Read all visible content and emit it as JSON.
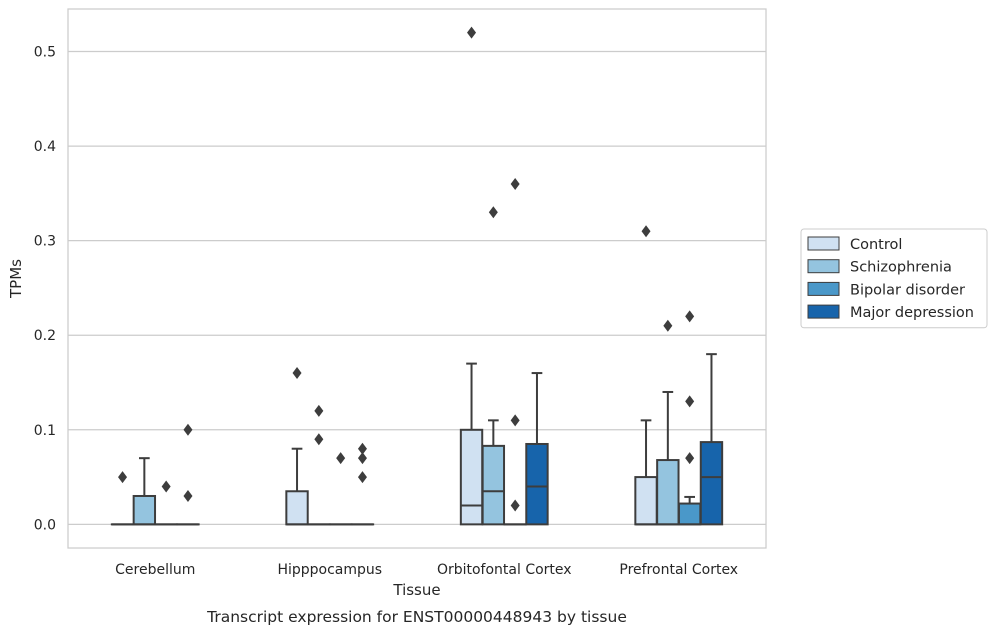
{
  "chart_data": {
    "type": "box",
    "caption": "Transcript expression for ENST00000448943 by tissue",
    "xlabel": "Tissue",
    "ylabel": "TPMs",
    "ylim": [
      -0.025,
      0.545
    ],
    "yticks": [
      0.0,
      0.1,
      0.2,
      0.3,
      0.4,
      0.5
    ],
    "ytick_labels": [
      "0.0",
      "0.1",
      "0.2",
      "0.3",
      "0.4",
      "0.5"
    ],
    "grid": "horizontal",
    "legend_position": "right",
    "categories": [
      "Cerebellum",
      "Hipppocampus",
      "Orbitofontal Cortex",
      "Prefrontal Cortex"
    ],
    "series": [
      {
        "name": "Control",
        "color": "#d0e1f2",
        "boxes": [
          {
            "q1": 0,
            "median": 0,
            "q3": 0,
            "whisker_low": 0,
            "whisker_high": 0,
            "outliers": [
              0.05
            ]
          },
          {
            "q1": 0,
            "median": 0,
            "q3": 0.035,
            "whisker_low": 0,
            "whisker_high": 0.08,
            "outliers": [
              0.16
            ]
          },
          {
            "q1": 0,
            "median": 0.02,
            "q3": 0.1,
            "whisker_low": 0,
            "whisker_high": 0.17,
            "outliers": [
              0.52
            ]
          },
          {
            "q1": 0,
            "median": 0,
            "q3": 0.05,
            "whisker_low": 0,
            "whisker_high": 0.11,
            "outliers": [
              0.31
            ]
          }
        ]
      },
      {
        "name": "Schizophrenia",
        "color": "#94c4df",
        "boxes": [
          {
            "q1": 0,
            "median": 0,
            "q3": 0.03,
            "whisker_low": 0,
            "whisker_high": 0.07,
            "outliers": []
          },
          {
            "q1": 0,
            "median": 0,
            "q3": 0,
            "whisker_low": 0,
            "whisker_high": 0,
            "outliers": [
              0.12,
              0.09
            ]
          },
          {
            "q1": 0,
            "median": 0.035,
            "q3": 0.083,
            "whisker_low": 0,
            "whisker_high": 0.11,
            "outliers": [
              0.33
            ]
          },
          {
            "q1": 0,
            "median": 0,
            "q3": 0.068,
            "whisker_low": 0,
            "whisker_high": 0.14,
            "outliers": [
              0.21
            ]
          }
        ]
      },
      {
        "name": "Bipolar disorder",
        "color": "#4a98c9",
        "boxes": [
          {
            "q1": 0,
            "median": 0,
            "q3": 0,
            "whisker_low": 0,
            "whisker_high": 0,
            "outliers": [
              0.04
            ]
          },
          {
            "q1": 0,
            "median": 0,
            "q3": 0,
            "whisker_low": 0,
            "whisker_high": 0,
            "outliers": [
              0.07
            ]
          },
          {
            "q1": 0,
            "median": 0,
            "q3": 0,
            "whisker_low": 0,
            "whisker_high": 0,
            "outliers": [
              0.36,
              0.11,
              0.02
            ]
          },
          {
            "q1": 0,
            "median": 0,
            "q3": 0.022,
            "whisker_low": 0,
            "whisker_high": 0.029,
            "outliers": [
              0.22,
              0.13,
              0.07
            ]
          }
        ]
      },
      {
        "name": "Major depression",
        "color": "#1764ab",
        "boxes": [
          {
            "q1": 0,
            "median": 0,
            "q3": 0,
            "whisker_low": 0,
            "whisker_high": 0,
            "outliers": [
              0.1,
              0.03
            ]
          },
          {
            "q1": 0,
            "median": 0,
            "q3": 0,
            "whisker_low": 0,
            "whisker_high": 0,
            "outliers": [
              0.08,
              0.07,
              0.05
            ]
          },
          {
            "q1": 0,
            "median": 0.04,
            "q3": 0.085,
            "whisker_low": 0,
            "whisker_high": 0.16,
            "outliers": []
          },
          {
            "q1": 0,
            "median": 0.05,
            "q3": 0.087,
            "whisker_low": 0,
            "whisker_high": 0.18,
            "outliers": []
          }
        ]
      }
    ]
  }
}
